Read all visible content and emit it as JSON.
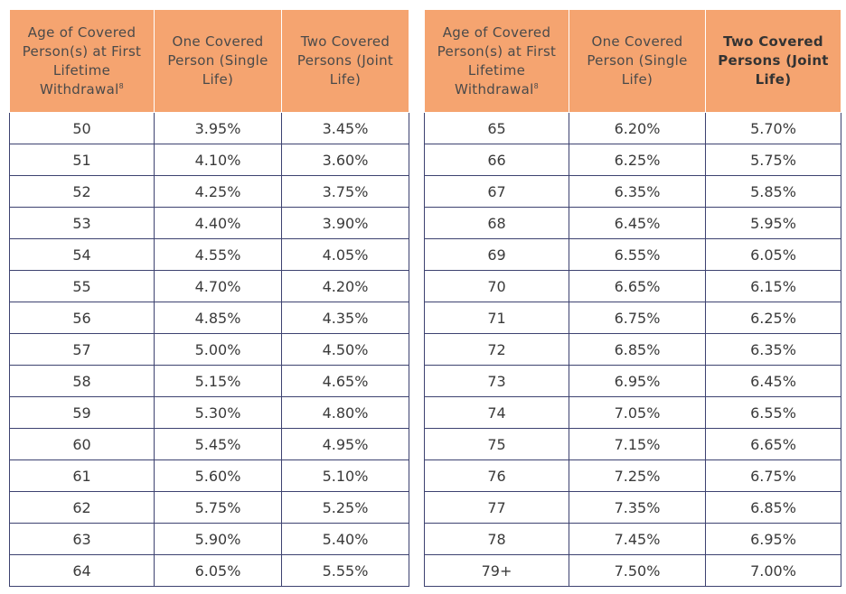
{
  "tables": [
    {
      "header": [
        "Age of Covered Person(s) at First Lifetime Withdrawal",
        "One Covered Person (Single Life)",
        "Two Covered Persons (Joint Life)"
      ],
      "header_note": "8",
      "rows": [
        [
          "50",
          "3.95%",
          "3.45%"
        ],
        [
          "51",
          "4.10%",
          "3.60%"
        ],
        [
          "52",
          "4.25%",
          "3.75%"
        ],
        [
          "53",
          "4.40%",
          "3.90%"
        ],
        [
          "54",
          "4.55%",
          "4.05%"
        ],
        [
          "55",
          "4.70%",
          "4.20%"
        ],
        [
          "56",
          "4.85%",
          "4.35%"
        ],
        [
          "57",
          "5.00%",
          "4.50%"
        ],
        [
          "58",
          "5.15%",
          "4.65%"
        ],
        [
          "59",
          "5.30%",
          "4.80%"
        ],
        [
          "60",
          "5.45%",
          "4.95%"
        ],
        [
          "61",
          "5.60%",
          "5.10%"
        ],
        [
          "62",
          "5.75%",
          "5.25%"
        ],
        [
          "63",
          "5.90%",
          "5.40%"
        ],
        [
          "64",
          "6.05%",
          "5.55%"
        ]
      ]
    },
    {
      "header": [
        "Age of Covered Person(s) at First Lifetime Withdrawal",
        "One Covered Person (Single Life)",
        "Two Covered Persons (Joint Life)"
      ],
      "header_note": "8",
      "rows": [
        [
          "65",
          "6.20%",
          "5.70%"
        ],
        [
          "66",
          "6.25%",
          "5.75%"
        ],
        [
          "67",
          "6.35%",
          "5.85%"
        ],
        [
          "68",
          "6.45%",
          "5.95%"
        ],
        [
          "69",
          "6.55%",
          "6.05%"
        ],
        [
          "70",
          "6.65%",
          "6.15%"
        ],
        [
          "71",
          "6.75%",
          "6.25%"
        ],
        [
          "72",
          "6.85%",
          "6.35%"
        ],
        [
          "73",
          "6.95%",
          "6.45%"
        ],
        [
          "74",
          "7.05%",
          "6.55%"
        ],
        [
          "75",
          "7.15%",
          "6.65%"
        ],
        [
          "76",
          "7.25%",
          "6.75%"
        ],
        [
          "77",
          "7.35%",
          "6.85%"
        ],
        [
          "78",
          "7.45%",
          "6.95%"
        ],
        [
          "79+",
          "7.50%",
          "7.00%"
        ]
      ]
    }
  ]
}
